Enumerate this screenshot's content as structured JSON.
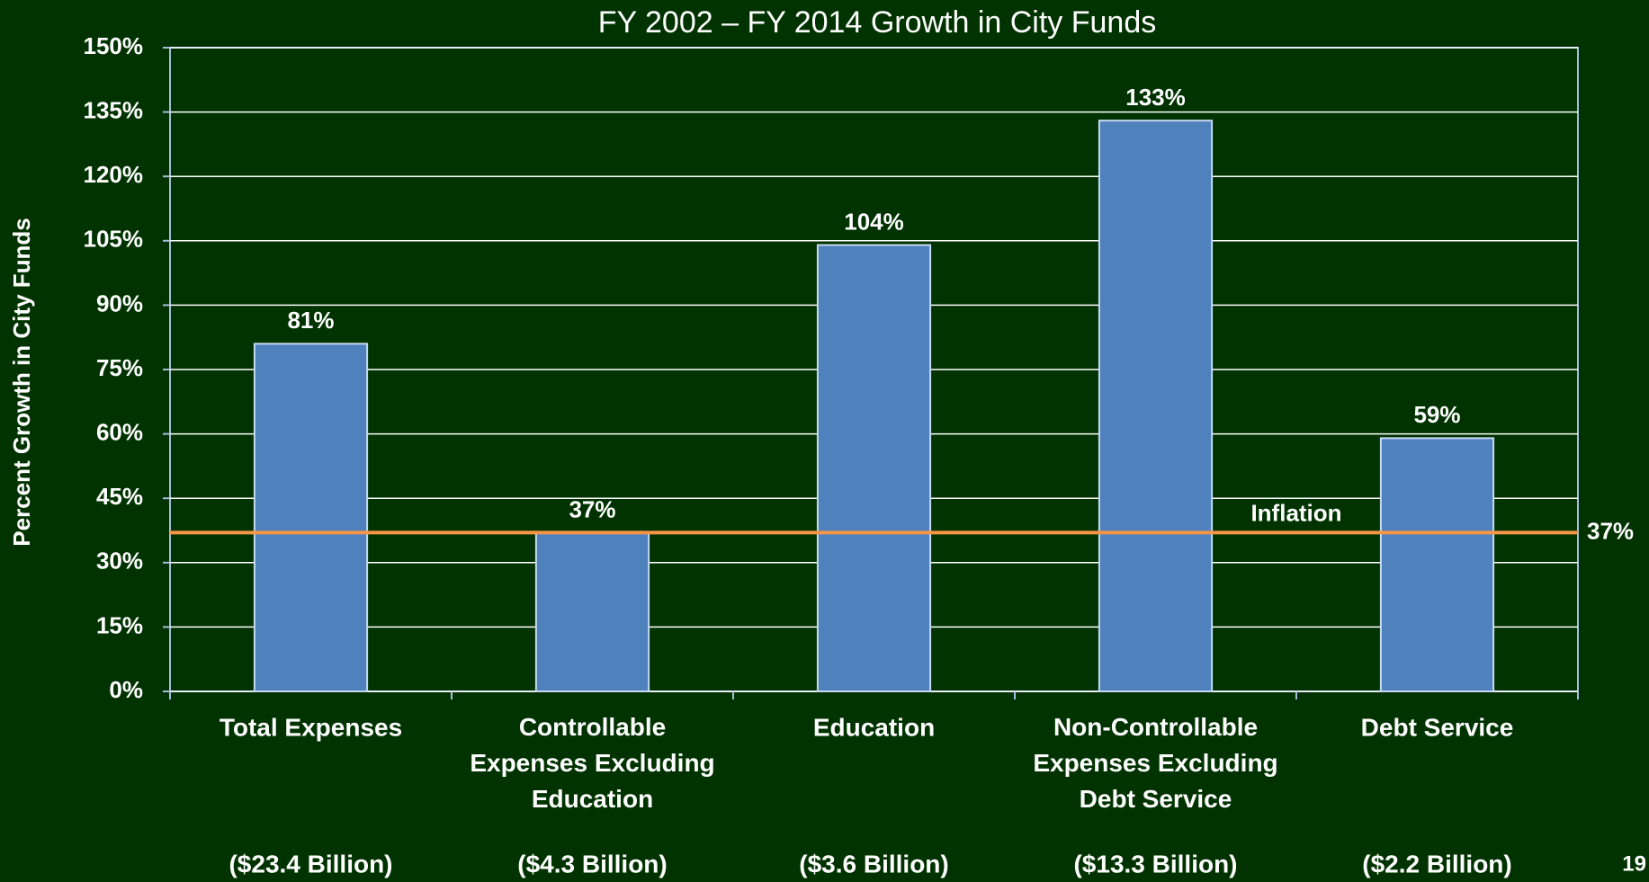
{
  "chart_data": {
    "type": "bar",
    "title": "FY 2002 – FY 2014 Growth in City Funds",
    "y_label": "Percent Growth in City Funds",
    "categories": [
      "Total Expenses",
      "Controllable\nExpenses Excluding\nEducation",
      "Education",
      "Non-Controllable\nExpenses Excluding\nDebt Service",
      "Debt Service"
    ],
    "category_totals": [
      "($23.4 Billion)",
      "($4.3 Billion)",
      "($3.6 Billion)",
      "($13.3 Billion)",
      "($2.2 Billion)"
    ],
    "values": [
      81,
      37,
      104,
      133,
      59
    ],
    "value_labels": [
      "81%",
      "37%",
      "104%",
      "133%",
      "59%"
    ],
    "color": "#4f81bd",
    "ylim": [
      0,
      150
    ],
    "yticks": [
      {
        "value": 0,
        "label": "0%"
      },
      {
        "value": 15,
        "label": "15%"
      },
      {
        "value": 30,
        "label": "30%"
      },
      {
        "value": 45,
        "label": "45%"
      },
      {
        "value": 60,
        "label": "60%"
      },
      {
        "value": 75,
        "label": "75%"
      },
      {
        "value": 90,
        "label": "90%"
      },
      {
        "value": 105,
        "label": "105%"
      },
      {
        "value": 120,
        "label": "120%"
      },
      {
        "value": 135,
        "label": "135%"
      },
      {
        "value": 150,
        "label": "150%"
      }
    ],
    "grid": true,
    "reference_line": {
      "name": "Inflation",
      "value": 37,
      "value_label": "37%",
      "color": "#f79646"
    }
  },
  "page_number": "19"
}
